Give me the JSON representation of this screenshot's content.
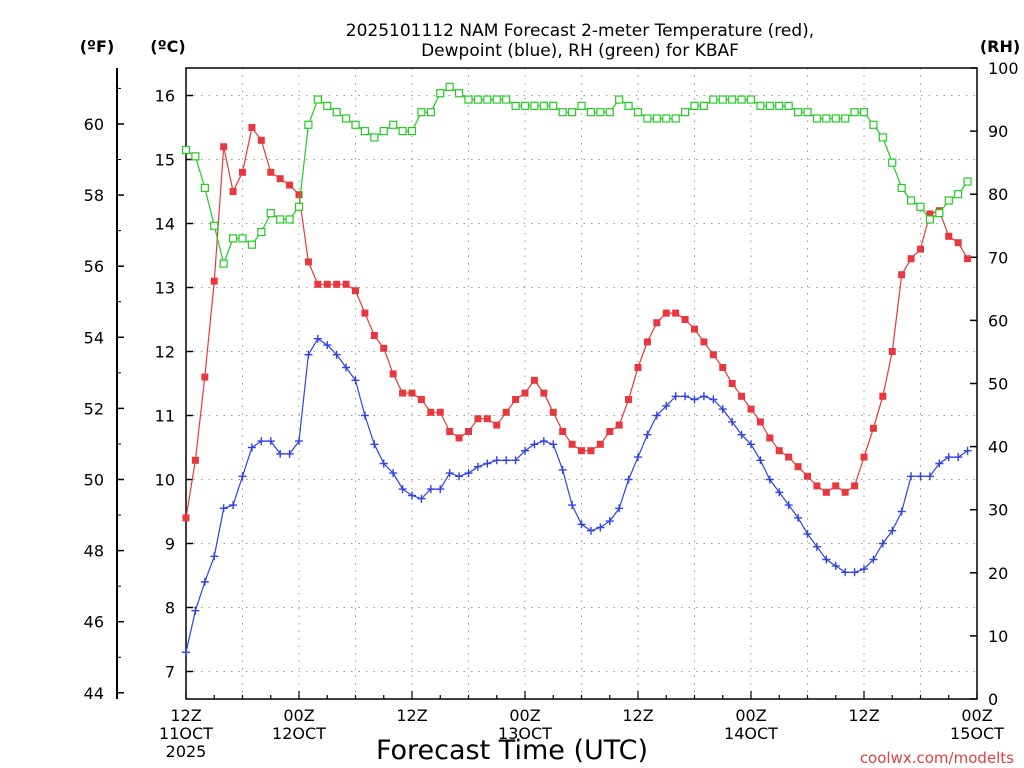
{
  "chart_data": {
    "type": "line",
    "title_line1": "2025101112 NAM Forecast 2-meter Temperature (red),",
    "title_line2": "Dewpoint (blue), RH (green) for KBAF",
    "xlabel": "Forecast Time (UTC)",
    "credit": "coolwx.com/modelts",
    "unit_f": "(ºF)",
    "unit_c": "(ºC)",
    "unit_rh": "(RH)",
    "x_range_hours": [
      0,
      84
    ],
    "celsius_range": [
      6.57,
      16.43
    ],
    "rh_range": [
      0,
      100
    ],
    "fahrenheit_ticks": [
      44,
      46,
      48,
      50,
      52,
      54,
      56,
      58,
      60
    ],
    "celsius_ticks": [
      7,
      8,
      9,
      10,
      11,
      12,
      13,
      14,
      15,
      16
    ],
    "rh_ticks": [
      0,
      10,
      20,
      30,
      40,
      50,
      60,
      70,
      80,
      90,
      100
    ],
    "x_ticks": [
      {
        "hour": 0,
        "lines": [
          "12Z",
          "11OCT",
          "2025"
        ]
      },
      {
        "hour": 12,
        "lines": [
          "00Z",
          "12OCT"
        ]
      },
      {
        "hour": 24,
        "lines": [
          "12Z"
        ]
      },
      {
        "hour": 36,
        "lines": [
          "00Z",
          "13OCT"
        ]
      },
      {
        "hour": 48,
        "lines": [
          "12Z"
        ]
      },
      {
        "hour": 60,
        "lines": [
          "00Z",
          "14OCT"
        ]
      },
      {
        "hour": 72,
        "lines": [
          "12Z"
        ]
      },
      {
        "hour": 84,
        "lines": [
          "00Z",
          "15OCT"
        ]
      }
    ],
    "colors": {
      "temperature": "#e8383d",
      "dewpoint": "#2f43e0",
      "rh": "#22cc22",
      "grid": "#9a9a9a"
    },
    "series": [
      {
        "name": "Temperature",
        "marker": "filled-square",
        "unit": "C",
        "values": [
          9.4,
          10.3,
          11.6,
          13.1,
          15.2,
          14.5,
          14.8,
          15.5,
          15.3,
          14.8,
          14.7,
          14.6,
          14.45,
          13.4,
          13.05,
          13.05,
          13.05,
          13.05,
          12.95,
          12.6,
          12.25,
          12.05,
          11.65,
          11.35,
          11.35,
          11.25,
          11.05,
          11.05,
          10.75,
          10.65,
          10.75,
          10.95,
          10.95,
          10.85,
          11.05,
          11.25,
          11.35,
          11.55,
          11.35,
          11.05,
          10.75,
          10.55,
          10.45,
          10.45,
          10.55,
          10.75,
          10.85,
          11.25,
          11.75,
          12.15,
          12.45,
          12.6,
          12.6,
          12.5,
          12.35,
          12.15,
          11.95,
          11.75,
          11.5,
          11.3,
          11.1,
          10.9,
          10.65,
          10.45,
          10.35,
          10.2,
          10.05,
          9.9,
          9.8,
          9.9,
          9.8,
          9.9,
          10.35,
          10.8,
          11.3,
          12.0,
          13.2,
          13.45,
          13.6,
          14.15,
          14.2,
          13.8,
          13.7,
          13.45
        ]
      },
      {
        "name": "Dewpoint",
        "marker": "plus",
        "unit": "C",
        "values": [
          7.3,
          7.95,
          8.4,
          8.8,
          9.55,
          9.6,
          10.05,
          10.5,
          10.6,
          10.6,
          10.4,
          10.4,
          10.6,
          11.95,
          12.2,
          12.1,
          11.95,
          11.75,
          11.55,
          11.0,
          10.55,
          10.25,
          10.1,
          9.85,
          9.75,
          9.7,
          9.85,
          9.85,
          10.1,
          10.05,
          10.1,
          10.2,
          10.25,
          10.3,
          10.3,
          10.3,
          10.45,
          10.55,
          10.6,
          10.55,
          10.15,
          9.6,
          9.3,
          9.2,
          9.25,
          9.35,
          9.55,
          10.0,
          10.35,
          10.7,
          11.0,
          11.15,
          11.3,
          11.3,
          11.25,
          11.3,
          11.25,
          11.1,
          10.9,
          10.7,
          10.55,
          10.3,
          10.0,
          9.8,
          9.6,
          9.4,
          9.15,
          8.95,
          8.75,
          8.65,
          8.55,
          8.55,
          8.6,
          8.75,
          9.0,
          9.2,
          9.5,
          10.05,
          10.05,
          10.05,
          10.25,
          10.35,
          10.35,
          10.45
        ]
      },
      {
        "name": "RH",
        "marker": "open-square",
        "unit": "percent",
        "values": [
          87,
          86,
          81,
          75,
          69,
          73,
          73,
          72,
          74,
          77,
          76,
          76,
          78,
          91,
          95,
          94,
          93,
          92,
          91,
          90,
          89,
          90,
          91,
          90,
          90,
          93,
          93,
          96,
          97,
          96,
          95,
          95,
          95,
          95,
          95,
          94,
          94,
          94,
          94,
          94,
          93,
          93,
          94,
          93,
          93,
          93,
          95,
          94,
          93,
          92,
          92,
          92,
          92,
          93,
          94,
          94,
          95,
          95,
          95,
          95,
          95,
          94,
          94,
          94,
          94,
          93,
          93,
          92,
          92,
          92,
          92,
          93,
          93,
          91,
          89,
          85,
          81,
          79,
          78,
          76,
          77,
          79,
          80,
          82
        ]
      }
    ]
  }
}
